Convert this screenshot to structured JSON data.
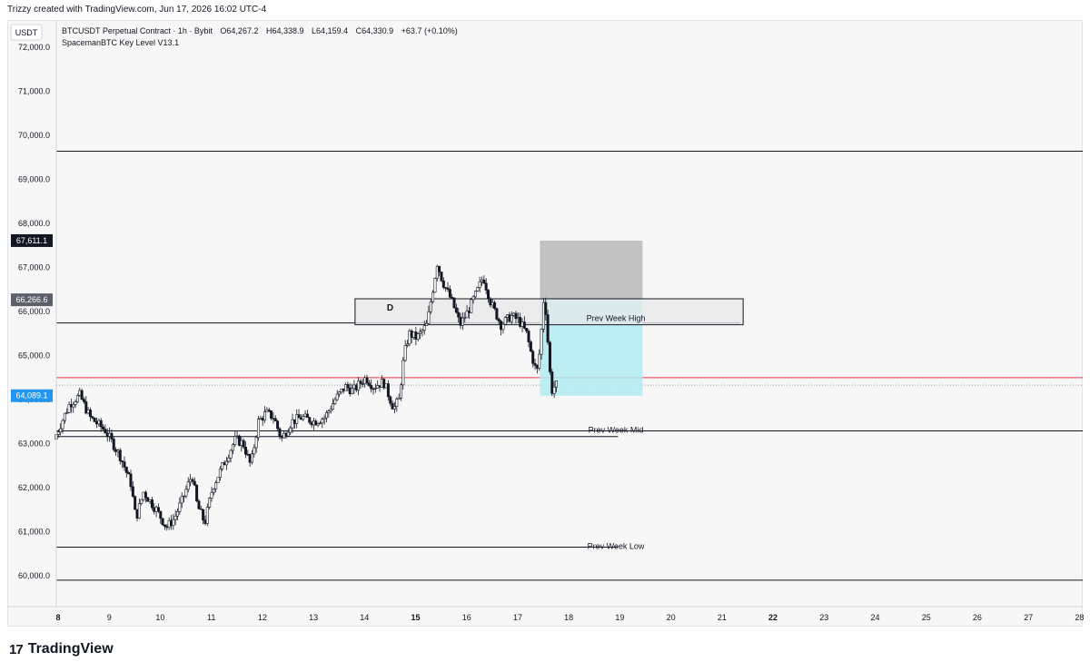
{
  "header": {
    "credit": "Trizzy created with TradingView.com, Jun 17, 2026 16:02 UTC-4"
  },
  "toolbar": {
    "currency": "USDT"
  },
  "legend": {
    "symbol": "BTCUSDT Perpetual Contract · 1h · Bybit",
    "open": "O64,267.2",
    "high": "H64,338.9",
    "low": "L64,159.4",
    "close": "C64,330.9",
    "change": "+63.7 (+0.10%)",
    "indicator": "SpacemanBTC Key Level V13.1"
  },
  "footer": {
    "logo_text": "TradingView",
    "logo_mark": "17"
  },
  "colors": {
    "up": "#ffffff",
    "down": "#131722",
    "red_line": "#f23645",
    "target_box": "#b2ebf2",
    "stop_box": "#b8b8b8",
    "label_current_bg": "#2196f3",
    "label_dark_bg": "#131722"
  },
  "chart_data": {
    "type": "candlestick",
    "x_ticks": [
      8,
      9,
      10,
      11,
      12,
      13,
      14,
      15,
      16,
      17,
      18,
      19,
      20,
      21,
      22,
      23,
      24,
      25,
      26,
      27,
      28
    ],
    "x_tick_bold": [
      8,
      15,
      22
    ],
    "y_ticks": [
      "72,000.0",
      "71,000.0",
      "70,000.0",
      "69,000.0",
      "68,000.0",
      "67,000.0",
      "66,000.0",
      "65,000.0",
      "64,000.0",
      "63,000.0",
      "62,000.0",
      "61,000.0",
      "60,000.0"
    ],
    "y_tick_values": [
      72000,
      71000,
      70000,
      69000,
      68000,
      67000,
      66000,
      65000,
      64000,
      63000,
      62000,
      61000,
      60000
    ],
    "ylim": [
      59300,
      72600
    ],
    "xlim": [
      8,
      28.1
    ],
    "price_labels": [
      {
        "text": "67,611.1",
        "value": 67611.1,
        "style": "dark"
      },
      {
        "text": "66,266.6",
        "value": 66266.6,
        "style": "gray"
      },
      {
        "text": "64,089.1",
        "value": 64089.1,
        "style": "blue"
      }
    ],
    "horizontal_levels": [
      {
        "value": 69640,
        "x_start": 8,
        "x_end": 28.1,
        "label": ""
      },
      {
        "value": 65740,
        "x_start": 8,
        "x_end": 21.4,
        "label": ""
      },
      {
        "value": 63290,
        "x_start": 8,
        "x_end": 28.1,
        "label": "Prev Week Mid"
      },
      {
        "value": 63160,
        "x_start": 8,
        "x_end": 19.0,
        "label": ""
      },
      {
        "value": 60650,
        "x_start": 8,
        "x_end": 19.0,
        "label": "Prev Week Low"
      },
      {
        "value": 59900,
        "x_start": 8,
        "x_end": 28.1,
        "label": ""
      }
    ],
    "red_level": 64500,
    "dotted_level": 64330,
    "zone": {
      "label": "D",
      "x_start": 13.85,
      "x_end": 21.45,
      "y_low": 65700,
      "y_high": 66290,
      "line_label": "Prev Week High"
    },
    "position": {
      "x_start": 17.47,
      "x_end": 19.48,
      "entry": 66266.6,
      "stop": 67611.1,
      "target": 64089.1
    },
    "path_points": [
      [
        8.0,
        63100
      ],
      [
        8.3,
        63900
      ],
      [
        8.5,
        64100
      ],
      [
        8.7,
        63600
      ],
      [
        9.0,
        63300
      ],
      [
        9.3,
        62700
      ],
      [
        9.5,
        62100
      ],
      [
        9.6,
        61300
      ],
      [
        9.75,
        61900
      ],
      [
        10.0,
        61500
      ],
      [
        10.2,
        61100
      ],
      [
        10.35,
        61300
      ],
      [
        10.5,
        61700
      ],
      [
        10.7,
        62300
      ],
      [
        10.8,
        61600
      ],
      [
        10.95,
        61200
      ],
      [
        11.1,
        62000
      ],
      [
        11.3,
        62500
      ],
      [
        11.55,
        63100
      ],
      [
        11.7,
        63000
      ],
      [
        11.85,
        62500
      ],
      [
        12.0,
        63500
      ],
      [
        12.15,
        63700
      ],
      [
        12.3,
        63600
      ],
      [
        12.45,
        63100
      ],
      [
        12.65,
        63500
      ],
      [
        12.85,
        63600
      ],
      [
        13.1,
        63500
      ],
      [
        13.3,
        63600
      ],
      [
        13.5,
        64000
      ],
      [
        13.7,
        64300
      ],
      [
        13.85,
        64200
      ],
      [
        14.1,
        64500
      ],
      [
        14.25,
        64300
      ],
      [
        14.45,
        64400
      ],
      [
        14.55,
        64100
      ],
      [
        14.65,
        63800
      ],
      [
        14.75,
        64000
      ],
      [
        14.85,
        65000
      ],
      [
        14.95,
        65500
      ],
      [
        15.1,
        65400
      ],
      [
        15.3,
        65700
      ],
      [
        15.4,
        66400
      ],
      [
        15.5,
        67100
      ],
      [
        15.6,
        66700
      ],
      [
        15.8,
        66200
      ],
      [
        15.95,
        65700
      ],
      [
        16.1,
        66000
      ],
      [
        16.3,
        66500
      ],
      [
        16.4,
        66800
      ],
      [
        16.55,
        66200
      ],
      [
        16.75,
        65700
      ],
      [
        16.95,
        65900
      ],
      [
        17.1,
        65800
      ],
      [
        17.25,
        65500
      ],
      [
        17.35,
        65000
      ],
      [
        17.45,
        64600
      ],
      [
        17.52,
        65200
      ],
      [
        17.58,
        66266
      ],
      [
        17.62,
        66100
      ],
      [
        17.68,
        65100
      ],
      [
        17.72,
        64400
      ],
      [
        17.76,
        64150
      ],
      [
        17.8,
        64330
      ]
    ]
  }
}
